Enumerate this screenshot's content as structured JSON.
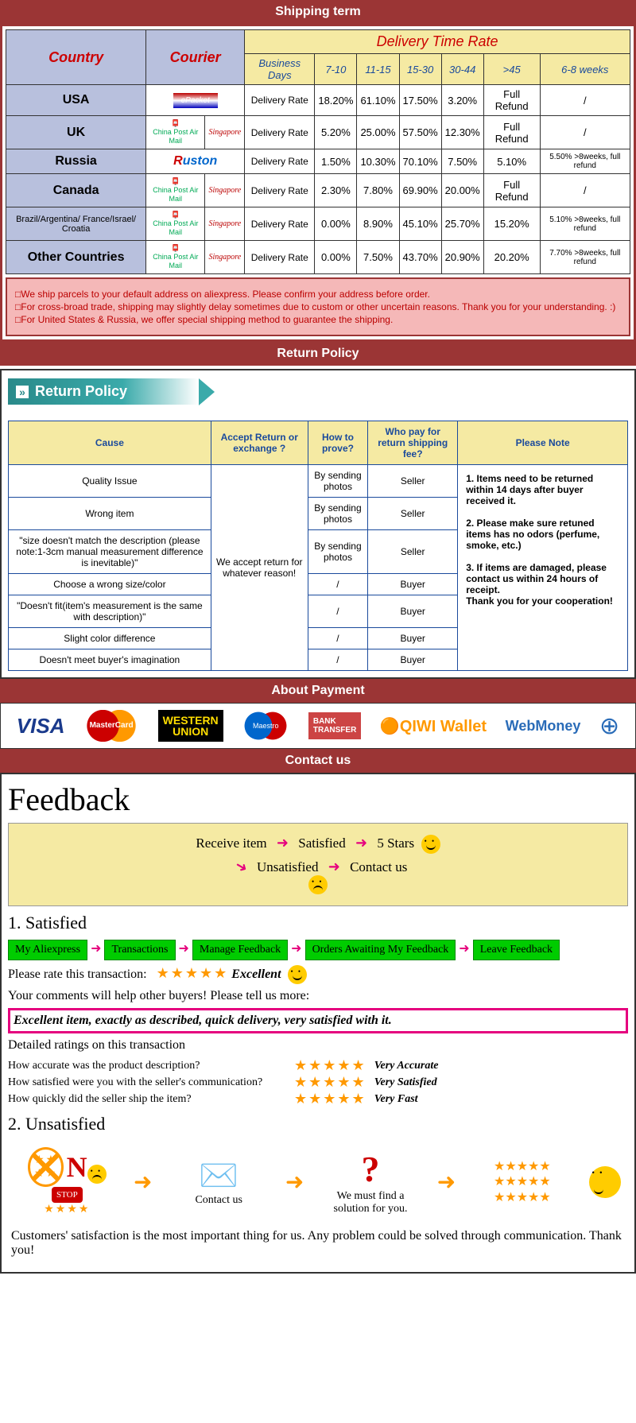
{
  "sections": {
    "shipping": "Shipping term",
    "return": "Return Policy",
    "payment": "About Payment",
    "contact": "Contact us"
  },
  "shipping": {
    "headers": {
      "country": "Country",
      "courier": "Courier",
      "delivery": "Delivery Time Rate",
      "bd": "Business Days",
      "c1": "7-10",
      "c2": "11-15",
      "c3": "15-30",
      "c4": "30-44",
      "c5": ">45",
      "c6": "6-8 weeks"
    },
    "rows": [
      {
        "country": "USA",
        "courier": "ePacket",
        "label": "Delivery Rate",
        "v": [
          "18.20%",
          "61.10%",
          "17.50%",
          "3.20%",
          "Full Refund",
          "/"
        ]
      },
      {
        "country": "UK",
        "courier": "cp-sing",
        "label": "Delivery Rate",
        "v": [
          "5.20%",
          "25.00%",
          "57.50%",
          "12.30%",
          "Full Refund",
          "/"
        ]
      },
      {
        "country": "Russia",
        "courier": "Ruston",
        "label": "Delivery Rate",
        "v": [
          "1.50%",
          "10.30%",
          "70.10%",
          "7.50%",
          "5.10%",
          "5.50% >8weeks, full refund"
        ]
      },
      {
        "country": "Canada",
        "courier": "cp-sing",
        "label": "Delivery Rate",
        "v": [
          "2.30%",
          "7.80%",
          "69.90%",
          "20.00%",
          "Full Refund",
          "/"
        ]
      },
      {
        "country": "Brazil/Argentina/ France/Israel/ Croatia",
        "courier": "cp-sing",
        "label": "Delivery Rate",
        "v": [
          "0.00%",
          "8.90%",
          "45.10%",
          "25.70%",
          "15.20%",
          "5.10% >8weeks, full refund"
        ],
        "small": true
      },
      {
        "country": "Other Countries",
        "courier": "cp-sing",
        "label": "Delivery Rate",
        "v": [
          "0.00%",
          "7.50%",
          "43.70%",
          "20.90%",
          "20.20%",
          "7.70% >8weeks, full refund"
        ]
      }
    ],
    "notes": [
      "□We ship parcels to your default address on aliexpress. Please confirm your address before order.",
      "□For cross-broad trade, shipping may slightly delay sometimes due to custom or other uncertain reasons. Thank you for your understanding. :)",
      "□For United States & Russia, we offer special shipping method to guarantee the shipping."
    ]
  },
  "returnBanner": "Return Policy",
  "returnTable": {
    "headers": [
      "Cause",
      "Accept Return or exchange ?",
      "How to prove?",
      "Who pay for return shipping fee?",
      "Please Note"
    ],
    "accept": "We accept return for whatever reason!",
    "rows": [
      {
        "cause": "Quality Issue",
        "prove": "By sending photos",
        "who": "Seller"
      },
      {
        "cause": "Wrong item",
        "prove": "By sending photos",
        "who": "Seller"
      },
      {
        "cause": "\"size doesn't match the description (please note:1-3cm manual measurement difference is inevitable)\"",
        "prove": "By sending photos",
        "who": "Seller"
      },
      {
        "cause": "Choose a wrong size/color",
        "prove": "/",
        "who": "Buyer"
      },
      {
        "cause": "\"Doesn't fit(item's measurement is the same with description)\"",
        "prove": "/",
        "who": "Buyer"
      },
      {
        "cause": "Slight color difference",
        "prove": "/",
        "who": "Buyer"
      },
      {
        "cause": "Doesn't meet buyer's imagination",
        "prove": "/",
        "who": "Buyer"
      }
    ],
    "note": "1. Items need to be returned within 14 days after buyer received it.\n\n2. Please make sure retuned items has no odors (perfume, smoke, etc.)\n\n3. If items are damaged, please contact us within 24 hours of receipt.\nThank you for your cooperation!"
  },
  "payment": {
    "visa": "VISA",
    "mc": "MasterCard",
    "wu1": "WESTERN",
    "wu2": "UNION",
    "maestro": "Maestro",
    "bt1": "BANK",
    "bt2": "TRANSFER",
    "qiwi": "QIWI Wallet",
    "wm": "WebMoney"
  },
  "feedback": {
    "title": "Feedback",
    "flow": {
      "receive": "Receive item",
      "sat": "Satisfied",
      "five": "5 Stars",
      "unsat": "Unsatisfied",
      "contact": "Contact us"
    },
    "sat_h": "1. Satisfied",
    "steps": [
      "My Aliexpress",
      "Transactions",
      "Manage Feedback",
      "Orders Awaiting My Feedback",
      "Leave Feedback"
    ],
    "rate": "Please rate this transaction:",
    "excellent": "Excellent",
    "comments_help": "Your comments will help other buyers! Please tell us more:",
    "comment": "Excellent item, exactly as described, quick delivery, very satisfied with it.",
    "detailed": "Detailed ratings on this transaction",
    "q1": "How accurate was the product description?",
    "a1": "Very Accurate",
    "q2": "How satisfied were you with the seller's communication?",
    "a2": "Very Satisfied",
    "q3": "How quickly did the seller ship the item?",
    "a3": "Very Fast",
    "unsat_h": "2. Unsatisfied",
    "no": "N",
    "stop": "STOP",
    "email": "EMAIL",
    "contact_us": "Contact us",
    "solution": "We must find a solution for you.",
    "footer": "Customers' satisfaction is the most important thing for us. Any problem could be solved through communication. Thank you!"
  },
  "colors": {
    "header_bg": "#9b3535",
    "cream": "#f5eaa3",
    "lavender": "#b8c0dd",
    "pink": "#f5b8b8",
    "teal": "#2a8a8a",
    "blue": "#1a4a9c",
    "green": "#00cc00",
    "magenta": "#e5007e",
    "orange": "#ff9900"
  }
}
